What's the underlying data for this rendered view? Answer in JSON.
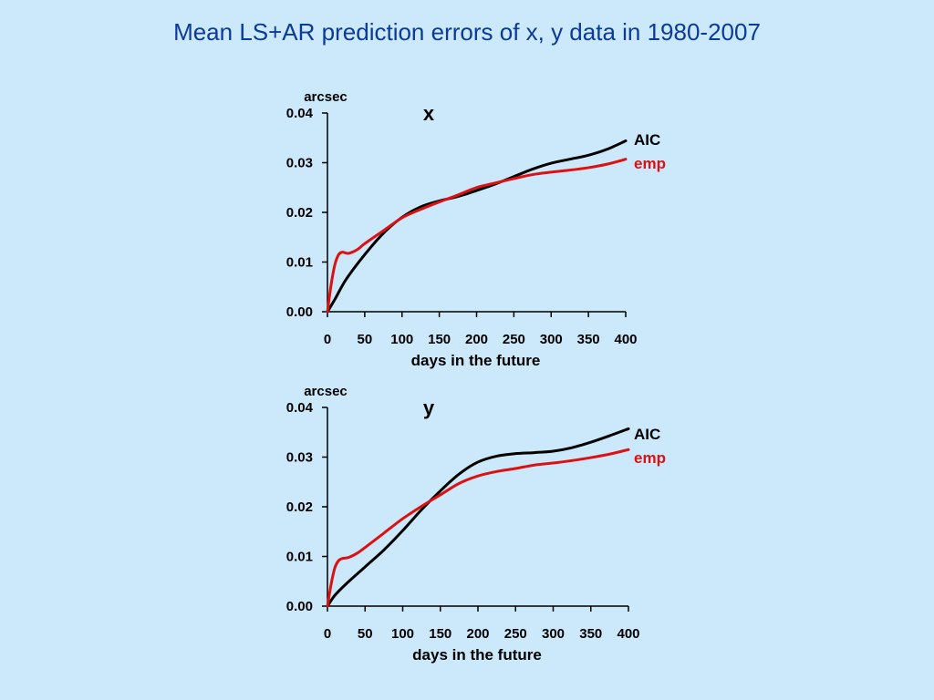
{
  "slide": {
    "title": "Mean LS+AR prediction errors of x, y data in 1980-2007"
  },
  "chart_data": [
    {
      "type": "line",
      "title": "x",
      "unit": "arcsec",
      "xlabel": "days in the future",
      "xlim": [
        0,
        400
      ],
      "ylim": [
        0,
        0.04
      ],
      "xticks": [
        "0",
        "50",
        "100",
        "150",
        "200",
        "250",
        "300",
        "350",
        "400"
      ],
      "yticks": [
        "0.00",
        "0.01",
        "0.02",
        "0.03",
        "0.04"
      ],
      "grid": false,
      "legend": "right",
      "series": [
        {
          "name": "AIC",
          "color": "#000000",
          "x": [
            0,
            10,
            25,
            50,
            75,
            100,
            125,
            150,
            175,
            200,
            225,
            250,
            275,
            300,
            325,
            350,
            375,
            400
          ],
          "values": [
            0.0,
            0.0025,
            0.0065,
            0.0115,
            0.0158,
            0.019,
            0.0211,
            0.0223,
            0.0232,
            0.0244,
            0.0257,
            0.0272,
            0.0287,
            0.0299,
            0.0307,
            0.0315,
            0.0327,
            0.0344
          ]
        },
        {
          "name": "emp",
          "color": "#dd1111",
          "x": [
            0,
            5,
            10,
            15,
            20,
            25,
            30,
            40,
            50,
            75,
            100,
            125,
            150,
            175,
            200,
            225,
            250,
            275,
            300,
            325,
            350,
            375,
            400
          ],
          "values": [
            0.0,
            0.0055,
            0.0095,
            0.0115,
            0.012,
            0.0118,
            0.0118,
            0.0125,
            0.0137,
            0.0163,
            0.0189,
            0.0206,
            0.0221,
            0.0235,
            0.025,
            0.0259,
            0.0268,
            0.0276,
            0.0281,
            0.0285,
            0.029,
            0.0297,
            0.0307
          ]
        }
      ]
    },
    {
      "type": "line",
      "title": "y",
      "unit": "arcsec",
      "xlabel": "days in the future",
      "xlim": [
        0,
        400
      ],
      "ylim": [
        0,
        0.04
      ],
      "xticks": [
        "0",
        "50",
        "100",
        "150",
        "200",
        "250",
        "300",
        "350",
        "400"
      ],
      "yticks": [
        "0.00",
        "0.01",
        "0.02",
        "0.03",
        "0.04"
      ],
      "grid": false,
      "legend": "right",
      "series": [
        {
          "name": "AIC",
          "color": "#000000",
          "x": [
            0,
            10,
            25,
            50,
            75,
            100,
            125,
            150,
            175,
            200,
            225,
            250,
            275,
            300,
            325,
            350,
            375,
            400
          ],
          "values": [
            0.0,
            0.0022,
            0.0045,
            0.0079,
            0.0113,
            0.0152,
            0.0194,
            0.0232,
            0.0266,
            0.029,
            0.0302,
            0.0307,
            0.0309,
            0.0312,
            0.0319,
            0.033,
            0.0343,
            0.0357
          ]
        },
        {
          "name": "emp",
          "color": "#dd1111",
          "x": [
            0,
            5,
            10,
            15,
            20,
            25,
            30,
            40,
            50,
            75,
            100,
            125,
            150,
            175,
            200,
            225,
            250,
            275,
            300,
            325,
            350,
            375,
            400
          ],
          "values": [
            0.0,
            0.0045,
            0.0078,
            0.0092,
            0.0096,
            0.0097,
            0.0099,
            0.0107,
            0.0118,
            0.0147,
            0.0176,
            0.0201,
            0.0224,
            0.0247,
            0.0262,
            0.0271,
            0.0277,
            0.0284,
            0.0288,
            0.0293,
            0.0299,
            0.0306,
            0.0315
          ]
        }
      ]
    }
  ]
}
